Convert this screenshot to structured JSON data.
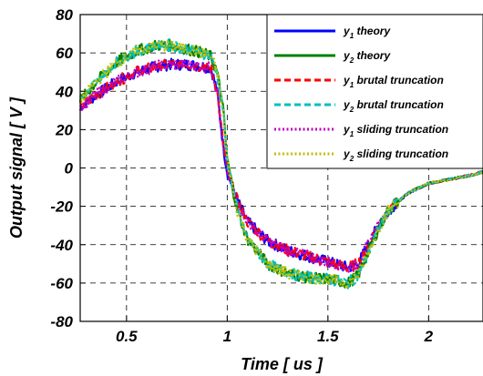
{
  "chart_data": {
    "type": "line",
    "title": "",
    "xlabel": "Time [ us ]",
    "ylabel": "Output signal [ V ]",
    "xlim": [
      0.27,
      2.27
    ],
    "ylim": [
      -80,
      80
    ],
    "x_ticks": [
      0.5,
      1,
      1.5,
      2
    ],
    "x_tick_labels": [
      "0.5",
      "1",
      "1.5",
      "2"
    ],
    "y_ticks": [
      -80,
      -60,
      -40,
      -20,
      0,
      20,
      40,
      60,
      80
    ],
    "y_tick_labels": [
      "-80",
      "-60",
      "-40",
      "-20",
      "0",
      "20",
      "40",
      "60",
      "80"
    ],
    "grid": true,
    "grid_style": "dashed",
    "legend_position": "top-right",
    "colors": {
      "y1_theory": "#0000ff",
      "y2_theory": "#008000",
      "y1_brutal": "#ff0000",
      "y2_brutal": "#00bfbf",
      "y1_sliding": "#bf00bf",
      "y2_sliding": "#bfbf00"
    },
    "x": [
      0.27,
      0.35,
      0.45,
      0.55,
      0.65,
      0.72,
      0.8,
      0.88,
      0.92,
      0.95,
      0.98,
      1.0,
      1.05,
      1.1,
      1.2,
      1.3,
      1.4,
      1.5,
      1.6,
      1.65,
      1.7,
      1.75,
      1.8,
      1.9,
      2.0,
      2.1,
      2.2,
      2.27
    ],
    "series": [
      {
        "key": "y1_theory",
        "values": [
          32,
          38,
          45,
          50,
          53,
          54,
          54,
          53,
          52,
          40,
          12,
          -2,
          -17,
          -28,
          -38,
          -43,
          -46,
          -49,
          -52,
          -50,
          -40,
          -30,
          -22,
          -13,
          -8,
          -6,
          -4,
          -2
        ]
      },
      {
        "key": "y2_theory",
        "values": [
          35,
          45,
          55,
          61,
          64,
          64,
          62,
          60,
          58,
          50,
          30,
          4,
          -22,
          -37,
          -50,
          -55,
          -57,
          -58,
          -60,
          -56,
          -44,
          -32,
          -22,
          -13,
          -8,
          -6,
          -4,
          -2
        ]
      },
      {
        "key": "y1_brutal",
        "values": [
          32,
          38,
          45,
          50,
          53,
          54,
          54,
          53,
          52,
          40,
          12,
          -2,
          -17,
          -28,
          -38,
          -43,
          -46,
          -49,
          -52,
          -50,
          -40,
          -30,
          -22,
          -13,
          -8,
          -6,
          -4,
          -2
        ]
      },
      {
        "key": "y2_brutal",
        "values": [
          35,
          45,
          55,
          61,
          64,
          64,
          62,
          60,
          58,
          50,
          30,
          4,
          -22,
          -37,
          -50,
          -55,
          -57,
          -58,
          -60,
          -56,
          -44,
          -32,
          -22,
          -13,
          -8,
          -6,
          -4,
          -2
        ]
      },
      {
        "key": "y1_sliding",
        "values": [
          32,
          38,
          45,
          50,
          53,
          54,
          54,
          53,
          52,
          40,
          12,
          -2,
          -17,
          -28,
          -38,
          -43,
          -46,
          -49,
          -52,
          -50,
          -40,
          -30,
          -22,
          -13,
          -8,
          -6,
          -4,
          -2
        ]
      },
      {
        "key": "y2_sliding",
        "values": [
          35,
          45,
          55,
          61,
          64,
          64,
          62,
          60,
          58,
          50,
          30,
          4,
          -22,
          -37,
          -50,
          -55,
          -57,
          -58,
          -60,
          -56,
          -44,
          -32,
          -22,
          -13,
          -8,
          -6,
          -4,
          -2
        ]
      }
    ],
    "legend": [
      {
        "key": "y1_theory",
        "prefix": "y",
        "sub": "1",
        "text": " theory",
        "dash": "solid"
      },
      {
        "key": "y2_theory",
        "prefix": "y",
        "sub": "2",
        "text": " theory",
        "dash": "solid"
      },
      {
        "key": "y1_brutal",
        "prefix": "y",
        "sub": "1",
        "text": " brutal truncation",
        "dash": "dashed"
      },
      {
        "key": "y2_brutal",
        "prefix": "y",
        "sub": "2",
        "text": " brutal truncation",
        "dash": "dashed"
      },
      {
        "key": "y1_sliding",
        "prefix": "y",
        "sub": "1",
        "text": " sliding truncation",
        "dash": "dotted"
      },
      {
        "key": "y2_sliding",
        "prefix": "y",
        "sub": "2",
        "text": " sliding truncation",
        "dash": "dotted"
      }
    ]
  }
}
